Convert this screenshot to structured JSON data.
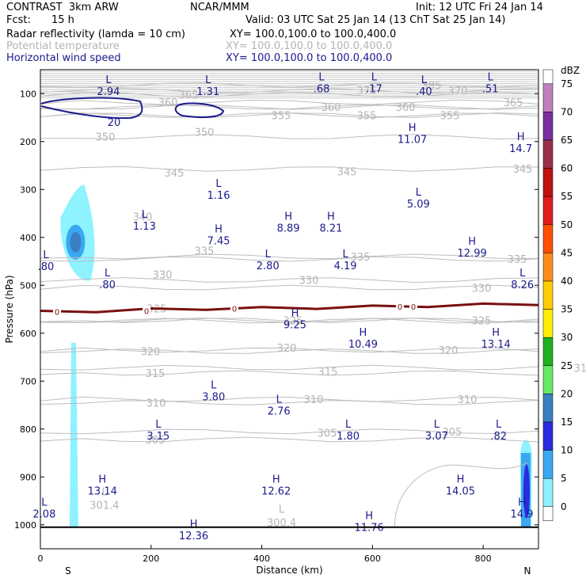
{
  "header": {
    "model": "CONTRAST  3km ARW",
    "center": "NCAR/MMM",
    "init": "Init: 12 UTC Fri 24 Jan 14",
    "fcst_label": "Fcst:",
    "fcst_value": "15 h",
    "valid": "Valid: 03 UTC Sat 25 Jan 14 (13 ChT Sat 25 Jan 14)",
    "fields": [
      {
        "name": "Radar reflectivity (lamda = 10 cm)",
        "xy": "XY= 100.0,100.0 to 100.0,400.0"
      },
      {
        "name": "Potential temperature",
        "xy": "XY= 100.0,100.0 to 100.0,400.0"
      },
      {
        "name": "Horizontal wind speed",
        "xy": "XY= 100.0,100.0 to 100.0,400.0"
      }
    ]
  },
  "chart_data": {
    "type": "cross-section",
    "xlabel": "Distance (km)",
    "ylabel": "Pressure (hPa)",
    "xlim": [
      0,
      900
    ],
    "ylim": [
      1050,
      50
    ],
    "x_ticks": [
      0,
      200,
      400,
      600,
      800
    ],
    "y_ticks": [
      100,
      200,
      300,
      400,
      500,
      600,
      700,
      800,
      900,
      1000
    ],
    "end_labels": {
      "left": "S",
      "right": "N"
    },
    "colorbar": {
      "unit": "dBZ",
      "levels": [
        "75",
        "70",
        "65",
        "60",
        "55",
        "50",
        "45",
        "40",
        "35",
        "30",
        "25",
        "20",
        "15",
        "10",
        "5",
        "0"
      ],
      "colors": [
        "#ffffff",
        "#c080c0",
        "#7b2f9e",
        "#9b2f4a",
        "#c01010",
        "#e01c1c",
        "#ff5000",
        "#ff8c1e",
        "#ffcc00",
        "#ffee00",
        "#20b020",
        "#66e866",
        "#3a7fc1",
        "#2a2ae0",
        "#3aa8f0",
        "#8ef2ff",
        "#ffffff"
      ]
    },
    "theta_isotherms": [
      {
        "value": "385",
        "p": 82,
        "label_x": 545
      },
      {
        "value": "375",
        "p": 93,
        "label_x": 463
      },
      {
        "value": "370",
        "p": 94,
        "label_x": 578
      },
      {
        "value": "365",
        "p": 102,
        "label_x": 238
      },
      {
        "value": "365",
        "p": 118,
        "label_x": 648
      },
      {
        "value": "360",
        "p": 118,
        "label_x": 212
      },
      {
        "value": "360",
        "p": 128,
        "label_x": 418
      },
      {
        "value": "360",
        "p": 128,
        "label_x": 512
      },
      {
        "value": "355",
        "p": 145,
        "label_x": 355
      },
      {
        "value": "355",
        "p": 145,
        "label_x": 463
      },
      {
        "value": "355",
        "p": 145,
        "label_x": 568
      },
      {
        "value": "350",
        "p": 180,
        "label_x": 258
      },
      {
        "value": "350",
        "p": 190,
        "label_x": 133
      },
      {
        "value": "345",
        "p": 265,
        "label_x": 220
      },
      {
        "value": "345",
        "p": 262,
        "label_x": 438
      },
      {
        "value": "345",
        "p": 257,
        "label_x": 660
      },
      {
        "value": "340",
        "p": 357,
        "label_x": 180
      },
      {
        "value": "335",
        "p": 428,
        "label_x": 258
      },
      {
        "value": "335",
        "p": 440,
        "label_x": 455
      },
      {
        "value": "335",
        "p": 445,
        "label_x": 653
      },
      {
        "value": "330",
        "p": 477,
        "label_x": 205
      },
      {
        "value": "330",
        "p": 489,
        "label_x": 390
      },
      {
        "value": "330",
        "p": 505,
        "label_x": 608
      },
      {
        "value": "325",
        "p": 548,
        "label_x": 198
      },
      {
        "value": "325",
        "p": 573,
        "label_x": 370
      },
      {
        "value": "325",
        "p": 573,
        "label_x": 608
      },
      {
        "value": "325",
        "p": 574,
        "label_x": 855
      },
      {
        "value": "320",
        "p": 638,
        "label_x": 190
      },
      {
        "value": "320",
        "p": 630,
        "label_x": 362
      },
      {
        "value": "320",
        "p": 635,
        "label_x": 566
      },
      {
        "value": "315",
        "p": 683,
        "label_x": 196
      },
      {
        "value": "315",
        "p": 680,
        "label_x": 414
      },
      {
        "value": "315",
        "p": 672,
        "label_x": 737
      },
      {
        "value": "310",
        "p": 745,
        "label_x": 197
      },
      {
        "value": "310",
        "p": 738,
        "label_x": 396
      },
      {
        "value": "310",
        "p": 738,
        "label_x": 590
      },
      {
        "value": "305",
        "p": 822,
        "label_x": 196
      },
      {
        "value": "305",
        "p": 808,
        "label_x": 413
      },
      {
        "value": "305",
        "p": 805,
        "label_x": 571
      }
    ],
    "theta_low_labels": [
      {
        "label": "301.4",
        "km": 80,
        "p": 958
      },
      {
        "label": "300.4",
        "km": 400,
        "p": 995
      }
    ],
    "freezing_line": {
      "value": "0",
      "p": [
        555,
        553,
        550,
        548,
        547,
        546,
        544,
        542,
        540,
        538
      ]
    },
    "wind_speed_contour": {
      "value": "20",
      "p": [
        123,
        148
      ]
    },
    "wind_extrema": [
      {
        "type": "L",
        "value": "2.94",
        "km": 123,
        "p": 78
      },
      {
        "type": "L",
        "value": "1.31",
        "km": 303,
        "p": 78
      },
      {
        "type": "L",
        "value": ".68",
        "km": 508,
        "p": 72
      },
      {
        "type": "L",
        "value": ".17",
        "km": 603,
        "p": 72
      },
      {
        "type": "L",
        "value": ".40",
        "km": 693,
        "p": 78
      },
      {
        "type": "L",
        "value": ".51",
        "km": 813,
        "p": 72
      },
      {
        "type": "H",
        "value": "11.07",
        "km": 672,
        "p": 178
      },
      {
        "type": "H",
        "value": "14.7",
        "km": 868,
        "p": 197
      },
      {
        "type": "L",
        "value": "1.16",
        "km": 322,
        "p": 295
      },
      {
        "type": "L",
        "value": "5.09",
        "km": 683,
        "p": 313
      },
      {
        "type": "L",
        "value": "1.13",
        "km": 188,
        "p": 359
      },
      {
        "type": "H",
        "value": "8.89",
        "km": 448,
        "p": 363
      },
      {
        "type": "H",
        "value": "8.21",
        "km": 525,
        "p": 363
      },
      {
        "type": "H",
        "value": "7.45",
        "km": 322,
        "p": 390
      },
      {
        "type": "H",
        "value": "12.99",
        "km": 780,
        "p": 415
      },
      {
        "type": "L",
        "value": ".80",
        "km": 10,
        "p": 443
      },
      {
        "type": "L",
        "value": "2.80",
        "km": 411,
        "p": 442
      },
      {
        "type": "L",
        "value": "4.19",
        "km": 551,
        "p": 442
      },
      {
        "type": "L",
        "value": ".80",
        "km": 121,
        "p": 481
      },
      {
        "type": "L",
        "value": "8.26",
        "km": 871,
        "p": 481
      },
      {
        "type": "H",
        "value": "9.25",
        "km": 460,
        "p": 565
      },
      {
        "type": "H",
        "value": "10.49",
        "km": 583,
        "p": 605
      },
      {
        "type": "H",
        "value": "13.14",
        "km": 823,
        "p": 605
      },
      {
        "type": "L",
        "value": "3.80",
        "km": 313,
        "p": 715
      },
      {
        "type": "L",
        "value": "2.76",
        "km": 431,
        "p": 745
      },
      {
        "type": "L",
        "value": "3.15",
        "km": 213,
        "p": 797
      },
      {
        "type": "L",
        "value": "1.80",
        "km": 556,
        "p": 797
      },
      {
        "type": "L",
        "value": "3.07",
        "km": 716,
        "p": 797
      },
      {
        "type": "L",
        "value": ".82",
        "km": 828,
        "p": 797
      },
      {
        "type": "H",
        "value": "13.14",
        "km": 112,
        "p": 912
      },
      {
        "type": "H",
        "value": "12.62",
        "km": 426,
        "p": 912
      },
      {
        "type": "H",
        "value": "14.05",
        "km": 759,
        "p": 912
      },
      {
        "type": "L",
        "value": "2.08",
        "km": 7,
        "p": 960
      },
      {
        "type": "H",
        "value": "14.9",
        "km": 870,
        "p": 960
      },
      {
        "type": "H",
        "value": "11.76",
        "km": 594,
        "p": 988
      },
      {
        "type": "H",
        "value": "12.36",
        "km": 277,
        "p": 1005
      }
    ],
    "reflectivity_cells": [
      {
        "name": "upper-cell",
        "dbz_max": 15,
        "km": 65,
        "p_top": 290,
        "p_bottom": 490
      },
      {
        "name": "left-column",
        "dbz_max": 5,
        "km": 60,
        "p_top": 620,
        "p_bottom": 1005
      },
      {
        "name": "right-cell",
        "dbz_max": 20,
        "km": 877,
        "p_top": 810,
        "p_bottom": 1005
      }
    ]
  }
}
